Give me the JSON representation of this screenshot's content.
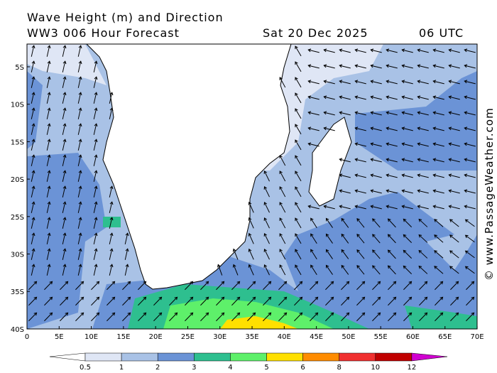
{
  "header": {
    "title": "Wave Height (m) and Direction",
    "model": "WW3 006 Hour Forecast",
    "date": "Sat 20 Dec 2025",
    "time": "06 UTC"
  },
  "map": {
    "lat_labels": [
      "5S",
      "10S",
      "15S",
      "20S",
      "25S",
      "30S",
      "35S",
      "40S"
    ],
    "lon_labels": [
      "0",
      "5E",
      "10E",
      "15E",
      "20E",
      "25E",
      "30E",
      "35E",
      "40E",
      "45E",
      "50E",
      "55E",
      "60E",
      "65E",
      "70E"
    ]
  },
  "colorbar": {
    "labels": [
      "0.5",
      "1",
      "2",
      "3",
      "4",
      "5",
      "6",
      "8",
      "10",
      "12"
    ]
  },
  "credit": "© www.PassageWeather.com"
}
